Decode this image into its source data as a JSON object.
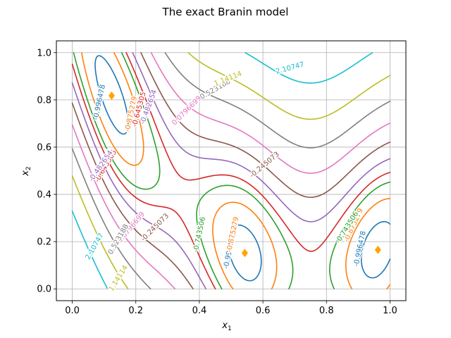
{
  "chart_data": {
    "type": "contour",
    "title": "The exact Branin model",
    "xlabel": "x",
    "xlabel_sub": "1",
    "ylabel": "x",
    "ylabel_sub": "2",
    "xlim": [
      -0.05,
      1.05
    ],
    "ylim": [
      -0.05,
      1.05
    ],
    "xticks": [
      "0.0",
      "0.2",
      "0.4",
      "0.6",
      "0.8",
      "1.0"
    ],
    "yticks": [
      "0.0",
      "0.2",
      "0.4",
      "0.6",
      "0.8",
      "1.0"
    ],
    "grid": true,
    "levels": [
      {
        "value": "-0.996478",
        "color": "#1f77b4"
      },
      {
        "value": "-0.875279",
        "color": "#ff7f0e"
      },
      {
        "value": "-0.743506",
        "color": "#2ca02c"
      },
      {
        "value": "-0.645305",
        "color": "#d62728"
      },
      {
        "value": "-0.482654",
        "color": "#9467bd"
      },
      {
        "value": "-0.245073",
        "color": "#8c564b"
      },
      {
        "value": "0.0796699",
        "color": "#e377c2"
      },
      {
        "value": "0.523188",
        "color": "#7f7f7f"
      },
      {
        "value": "1.14114",
        "color": "#bcbd22"
      },
      {
        "value": "2.10747",
        "color": "#17becf"
      }
    ],
    "minima": [
      {
        "x": 0.124,
        "y": 0.818
      },
      {
        "x": 0.543,
        "y": 0.152
      },
      {
        "x": 0.962,
        "y": 0.165
      }
    ],
    "minima_color": "#ffa500"
  }
}
